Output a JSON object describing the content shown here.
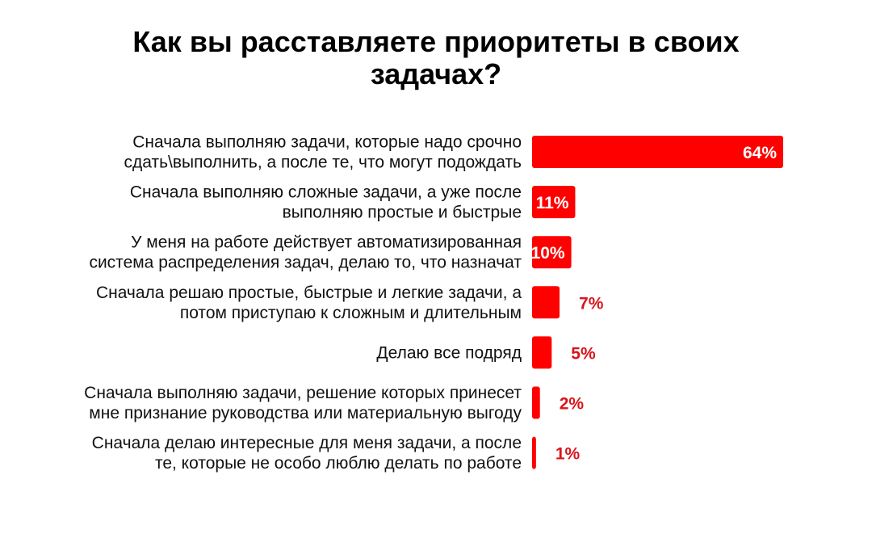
{
  "chart_data": {
    "type": "bar",
    "orientation": "horizontal",
    "title": "Как вы расставляете приоритеты в своих задачах?",
    "categories": [
      [
        "Сначала выполняю задачи, которые надо срочно",
        "сдать\\выполнить, а после те, что могут подождать"
      ],
      [
        "Сначала выполняю сложные задачи, а уже после",
        "выполняю простые и быстрые"
      ],
      [
        "У меня на работе действует автоматизированная",
        "система распределения задач, делаю то, что назначат"
      ],
      [
        "Сначала решаю простые, быстрые и легкие задачи, а",
        "потом приступаю к сложным и длительным"
      ],
      [
        "Делаю все подряд"
      ],
      [
        "Сначала выполняю задачи, решение которых принесет",
        "мне признание руководства или материальную выгоду"
      ],
      [
        "Сначала делаю интересные для меня задачи, а после",
        "те, которые не особо люблю делать по работе"
      ]
    ],
    "values": [
      64,
      11,
      10,
      7,
      5,
      2,
      1
    ],
    "value_labels": [
      "64%",
      "11%",
      "10%",
      "7%",
      "5%",
      "2%",
      "1%"
    ],
    "unit": "%",
    "xlim": [
      0,
      64
    ],
    "grid": false,
    "legend": "none",
    "colors": {
      "bar": "#ff0000",
      "label_inside": "#ffffff",
      "label_outside": "#d9141c"
    }
  }
}
